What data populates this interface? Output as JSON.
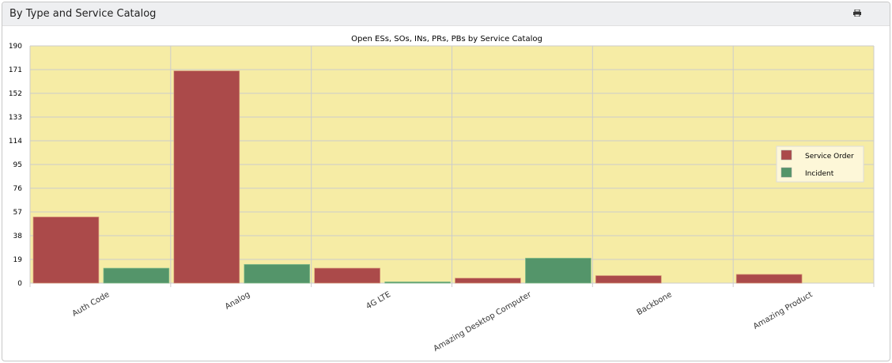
{
  "panel": {
    "title": "By Type and Service Catalog",
    "print_icon": "printer-icon"
  },
  "chart_data": {
    "type": "bar",
    "title": "Open ESs, SOs, INs, PRs, PBs by Service Catalog",
    "xlabel": "",
    "ylabel": "",
    "categories": [
      "Auth Code",
      "Analog",
      "4G LTE",
      "Amazing Desktop Computer",
      "Backbone",
      "Amazing Product"
    ],
    "series": [
      {
        "name": "Service Order",
        "color": "#ab4a4a",
        "values": [
          53,
          170,
          12,
          4,
          6,
          7
        ]
      },
      {
        "name": "Incident",
        "color": "#54956a",
        "values": [
          12,
          15,
          1,
          20,
          0,
          0
        ]
      }
    ],
    "ylim": [
      0,
      190
    ],
    "yticks": [
      0,
      19,
      38,
      57,
      76,
      95,
      114,
      133,
      152,
      171,
      190
    ],
    "grid": true,
    "legend": "right",
    "plot_background": "#f6eca5"
  }
}
